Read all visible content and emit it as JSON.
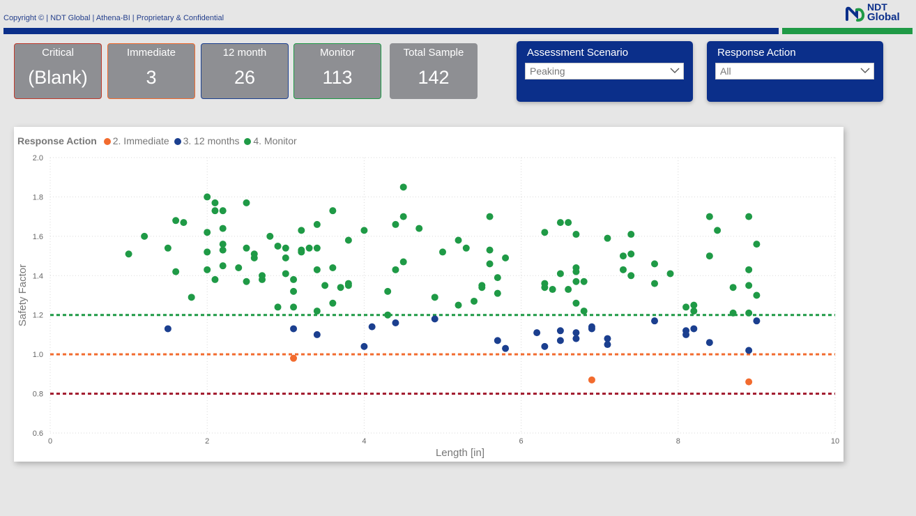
{
  "header": {
    "copyright": "Copyright © | NDT Global | Athena-BI | Proprietary & Confidential",
    "logo_line1": "NDT",
    "logo_line2": "Global"
  },
  "colors": {
    "brand_blue": "#0b2f8a",
    "brand_green": "#1f9a46",
    "immediate": "#f26b2e",
    "twelve_months": "#1b3f8f",
    "monitor": "#1f9a46",
    "critical_line": "#a0182b"
  },
  "cards": [
    {
      "label": "Critical",
      "value": "(Blank)",
      "border": "#c0392b"
    },
    {
      "label": "Immediate",
      "value": "3",
      "border": "#f26b2e"
    },
    {
      "label": "12 month",
      "value": "26",
      "border": "#1b3f8f"
    },
    {
      "label": "Monitor",
      "value": "113",
      "border": "#1f9a46"
    },
    {
      "label": "Total Sample",
      "value": "142",
      "border": "#8e8f93"
    }
  ],
  "slicers": {
    "scenario": {
      "title": "Assessment Scenario",
      "value": "Peaking"
    },
    "response": {
      "title": "Response Action",
      "value": "All"
    }
  },
  "chart_data": {
    "type": "scatter",
    "legend_title": "Response Action",
    "legend_position": "top-left",
    "xlabel": "Length [in]",
    "ylabel": "Safety Factor",
    "xlim": [
      0,
      10
    ],
    "ylim": [
      0.6,
      2.0
    ],
    "xticks": [
      0,
      2,
      4,
      6,
      8,
      10
    ],
    "yticks": [
      0.6,
      0.8,
      1.0,
      1.2,
      1.4,
      1.6,
      1.8,
      2.0
    ],
    "grid": true,
    "reference_lines": [
      {
        "y": 1.2,
        "color": "#1f9a46"
      },
      {
        "y": 1.0,
        "color": "#f26b2e"
      },
      {
        "y": 0.8,
        "color": "#a0182b"
      }
    ],
    "series": [
      {
        "name": "2. Immediate",
        "color": "#f26b2e",
        "points": [
          [
            3.1,
            0.98
          ],
          [
            6.9,
            0.87
          ],
          [
            8.9,
            0.86
          ]
        ]
      },
      {
        "name": "3. 12 months",
        "color": "#1b3f8f",
        "points": [
          [
            1.5,
            1.13
          ],
          [
            3.1,
            1.13
          ],
          [
            3.4,
            1.1
          ],
          [
            4.0,
            1.04
          ],
          [
            4.1,
            1.14
          ],
          [
            4.4,
            1.16
          ],
          [
            4.9,
            1.18
          ],
          [
            5.7,
            1.07
          ],
          [
            5.8,
            1.03
          ],
          [
            6.2,
            1.11
          ],
          [
            6.3,
            1.04
          ],
          [
            6.5,
            1.12
          ],
          [
            6.5,
            1.07
          ],
          [
            6.7,
            1.11
          ],
          [
            6.7,
            1.08
          ],
          [
            6.9,
            1.14
          ],
          [
            6.9,
            1.13
          ],
          [
            7.1,
            1.08
          ],
          [
            7.1,
            1.05
          ],
          [
            7.7,
            1.17
          ],
          [
            8.1,
            1.12
          ],
          [
            8.1,
            1.1
          ],
          [
            8.2,
            1.13
          ],
          [
            8.4,
            1.06
          ],
          [
            8.9,
            1.02
          ],
          [
            9.0,
            1.17
          ]
        ]
      },
      {
        "name": "4. Monitor",
        "color": "#1f9a46",
        "points": [
          [
            1.0,
            1.51
          ],
          [
            1.2,
            1.6
          ],
          [
            1.5,
            1.54
          ],
          [
            1.6,
            1.68
          ],
          [
            1.6,
            1.42
          ],
          [
            1.7,
            1.67
          ],
          [
            1.8,
            1.29
          ],
          [
            2.0,
            1.8
          ],
          [
            2.0,
            1.62
          ],
          [
            2.0,
            1.52
          ],
          [
            2.0,
            1.43
          ],
          [
            2.1,
            1.77
          ],
          [
            2.1,
            1.73
          ],
          [
            2.1,
            1.38
          ],
          [
            2.2,
            1.73
          ],
          [
            2.2,
            1.64
          ],
          [
            2.2,
            1.56
          ],
          [
            2.2,
            1.53
          ],
          [
            2.2,
            1.45
          ],
          [
            2.4,
            1.44
          ],
          [
            2.5,
            1.77
          ],
          [
            2.5,
            1.54
          ],
          [
            2.5,
            1.37
          ],
          [
            2.6,
            1.51
          ],
          [
            2.6,
            1.49
          ],
          [
            2.7,
            1.4
          ],
          [
            2.7,
            1.38
          ],
          [
            2.8,
            1.6
          ],
          [
            2.9,
            1.55
          ],
          [
            2.9,
            1.24
          ],
          [
            3.0,
            1.54
          ],
          [
            3.0,
            1.49
          ],
          [
            3.0,
            1.41
          ],
          [
            3.1,
            1.38
          ],
          [
            3.1,
            1.32
          ],
          [
            3.1,
            1.24
          ],
          [
            3.2,
            1.63
          ],
          [
            3.2,
            1.53
          ],
          [
            3.2,
            1.52
          ],
          [
            3.3,
            1.54
          ],
          [
            3.4,
            1.66
          ],
          [
            3.4,
            1.54
          ],
          [
            3.4,
            1.43
          ],
          [
            3.4,
            1.22
          ],
          [
            3.5,
            1.35
          ],
          [
            3.6,
            1.73
          ],
          [
            3.6,
            1.44
          ],
          [
            3.6,
            1.26
          ],
          [
            3.7,
            1.34
          ],
          [
            3.8,
            1.58
          ],
          [
            3.8,
            1.36
          ],
          [
            3.8,
            1.35
          ],
          [
            4.0,
            1.63
          ],
          [
            4.3,
            1.32
          ],
          [
            4.3,
            1.2
          ],
          [
            4.4,
            1.66
          ],
          [
            4.4,
            1.43
          ],
          [
            4.5,
            1.85
          ],
          [
            4.5,
            1.7
          ],
          [
            4.5,
            1.47
          ],
          [
            4.7,
            1.64
          ],
          [
            4.9,
            1.29
          ],
          [
            5.0,
            1.52
          ],
          [
            5.2,
            1.58
          ],
          [
            5.2,
            1.25
          ],
          [
            5.3,
            1.54
          ],
          [
            5.4,
            1.27
          ],
          [
            5.5,
            1.35
          ],
          [
            5.5,
            1.34
          ],
          [
            5.6,
            1.7
          ],
          [
            5.6,
            1.53
          ],
          [
            5.6,
            1.46
          ],
          [
            5.7,
            1.39
          ],
          [
            5.7,
            1.31
          ],
          [
            5.8,
            1.49
          ],
          [
            6.3,
            1.62
          ],
          [
            6.3,
            1.36
          ],
          [
            6.3,
            1.34
          ],
          [
            6.4,
            1.33
          ],
          [
            6.5,
            1.67
          ],
          [
            6.5,
            1.41
          ],
          [
            6.6,
            1.67
          ],
          [
            6.6,
            1.33
          ],
          [
            6.7,
            1.61
          ],
          [
            6.7,
            1.44
          ],
          [
            6.7,
            1.42
          ],
          [
            6.7,
            1.37
          ],
          [
            6.7,
            1.26
          ],
          [
            6.8,
            1.37
          ],
          [
            6.8,
            1.22
          ],
          [
            7.1,
            1.59
          ],
          [
            7.3,
            1.5
          ],
          [
            7.3,
            1.43
          ],
          [
            7.4,
            1.61
          ],
          [
            7.4,
            1.51
          ],
          [
            7.4,
            1.4
          ],
          [
            7.7,
            1.46
          ],
          [
            7.7,
            1.36
          ],
          [
            7.9,
            1.41
          ],
          [
            8.1,
            1.24
          ],
          [
            8.2,
            1.25
          ],
          [
            8.2,
            1.22
          ],
          [
            8.4,
            1.7
          ],
          [
            8.4,
            1.5
          ],
          [
            8.5,
            1.63
          ],
          [
            8.7,
            1.34
          ],
          [
            8.7,
            1.21
          ],
          [
            8.9,
            1.7
          ],
          [
            8.9,
            1.43
          ],
          [
            8.9,
            1.35
          ],
          [
            8.9,
            1.21
          ],
          [
            9.0,
            1.56
          ],
          [
            9.0,
            1.3
          ]
        ]
      }
    ]
  }
}
